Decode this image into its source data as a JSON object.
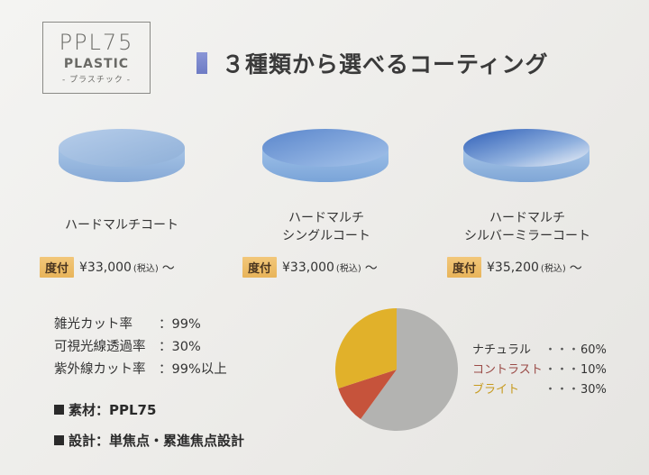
{
  "logo": {
    "model": "PPL75",
    "material": "PLASTIC",
    "kana": "- プラスチック -"
  },
  "headline": "３種類から選べるコーティング",
  "coatings": [
    {
      "label_lines": [
        "ハードマルチコート"
      ],
      "badge": "度付",
      "price": "¥33,000",
      "tax": "(税込)",
      "suffix": "～",
      "colors": [
        "#b8cfe8",
        "#8fb0d8"
      ]
    },
    {
      "label_lines": [
        "ハードマルチ",
        "シングルコート"
      ],
      "badge": "度付",
      "price": "¥33,000",
      "tax": "(税込)",
      "suffix": "～",
      "colors": [
        "#9ec0e8",
        "#5a8ad0"
      ]
    },
    {
      "label_lines": [
        "ハードマルチ",
        "シルバーミラーコート"
      ],
      "badge": "度付",
      "price": "¥35,200",
      "tax": "(税込)",
      "suffix": "～",
      "colors": [
        "#4a78c8",
        "#e8eef6"
      ]
    }
  ],
  "specs": [
    {
      "label": "雑光カット率",
      "value": "：99%"
    },
    {
      "label": "可視光線透過率",
      "value": "：30%"
    },
    {
      "label": "紫外線カット率",
      "value": "：99%以上"
    }
  ],
  "material_line": "素材：PPL75",
  "design_line": "設計：単焦点・累進焦点設計",
  "chart_data": {
    "type": "pie",
    "slices": [
      {
        "name": "ナチュラル",
        "value": 60,
        "color": "#b3b3b1"
      },
      {
        "name": "コントラスト",
        "value": 10,
        "color": "#c6533b"
      },
      {
        "name": "ブライト",
        "value": 30,
        "color": "#e1b12a"
      }
    ],
    "legend_colors": [
      "#333333",
      "#9a4a46",
      "#c79a1e"
    ],
    "dots": "・・・",
    "value_labels": [
      "60%",
      "10%",
      "30%"
    ]
  }
}
